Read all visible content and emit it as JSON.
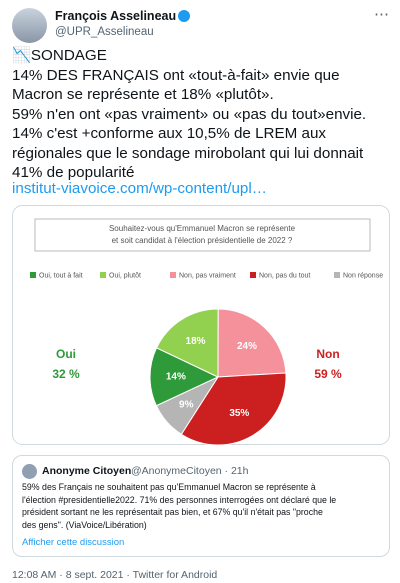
{
  "tweet": {
    "author_name": "François Asselineau",
    "handle": "@UPR_Asselineau",
    "text_lines": [
      "📉SONDAGE",
      "14% DES FRANÇAIS ont «tout-à-fait» envie que",
      "Macron se représente et 18% «plutôt».",
      "59% n'en ont «pas vraiment» ou «pas du tout»envie.",
      "14% c'est +conforme aux 10,5% de LREM aux",
      "régionales que le sondage mirobolant qui lui donnait",
      "41% de popularité"
    ],
    "link": "institut-viavoice.com/wp-content/upl…",
    "timestamp": "12:08 AM · 8 sept. 2021 · Twitter for Android"
  },
  "chart_data": {
    "type": "pie",
    "title_lines": [
      "Souhaitez-vous qu'Emmanuel Macron se représente",
      "et soit candidat à l'élection présidentielle de 2022 ?"
    ],
    "categories": [
      "Oui, tout à fait",
      "Oui, plutôt",
      "Non, pas vraiment",
      "Non, pas du tout",
      "Non réponse"
    ],
    "colors": [
      "#2f9a3a",
      "#92d050",
      "#f4919b",
      "#cc1f1f",
      "#b5b5b5"
    ],
    "values": [
      14,
      18,
      24,
      35,
      9
    ],
    "value_labels": [
      "14%",
      "18%",
      "24%",
      "35%",
      "9%"
    ],
    "summary": [
      {
        "label": "Oui",
        "total": "32 %",
        "color": "#2f9a3a"
      },
      {
        "label": "Non",
        "total": "59 %",
        "color": "#cc1f1f"
      }
    ]
  },
  "quoted_tweet": {
    "author_name": "Anonyme Citoyen",
    "handle_time": "@AnonymeCitoyen · 21h",
    "text_lines": [
      "59% des Français ne souhaitent pas qu'Emmanuel Macron se représente à",
      "l'élection #presidentielle2022. 71% des personnes interrogées ont déclaré que le",
      "président sortant ne les représentait pas bien, et 67% qu'il n'était pas \"proche",
      "des gens\". (ViaVoice/Libération)"
    ],
    "thread_link": "Afficher cette discussion"
  }
}
